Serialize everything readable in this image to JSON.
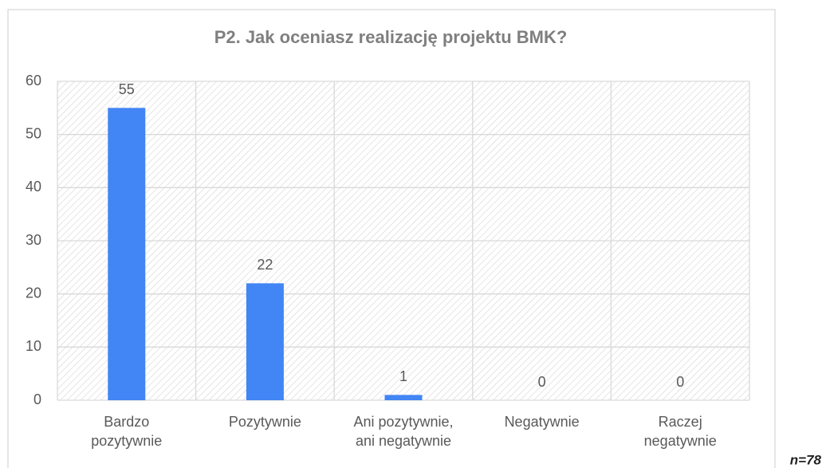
{
  "chart_data": {
    "type": "bar",
    "title": "P2. Jak oceniasz realizację projektu BMK?",
    "categories": [
      [
        "Bardzo",
        "pozytywnie"
      ],
      [
        "Pozytywnie"
      ],
      [
        "Ani pozytywnie,",
        "ani negatywnie"
      ],
      [
        "Negatywnie"
      ],
      [
        "Raczej",
        "negatywnie"
      ]
    ],
    "values": [
      55,
      22,
      1,
      0,
      0
    ],
    "color": "#4285f4",
    "ylim": [
      0,
      60
    ],
    "yticks": [
      0,
      10,
      20,
      30,
      40,
      50,
      60
    ],
    "grid": true,
    "note": "n=78"
  }
}
